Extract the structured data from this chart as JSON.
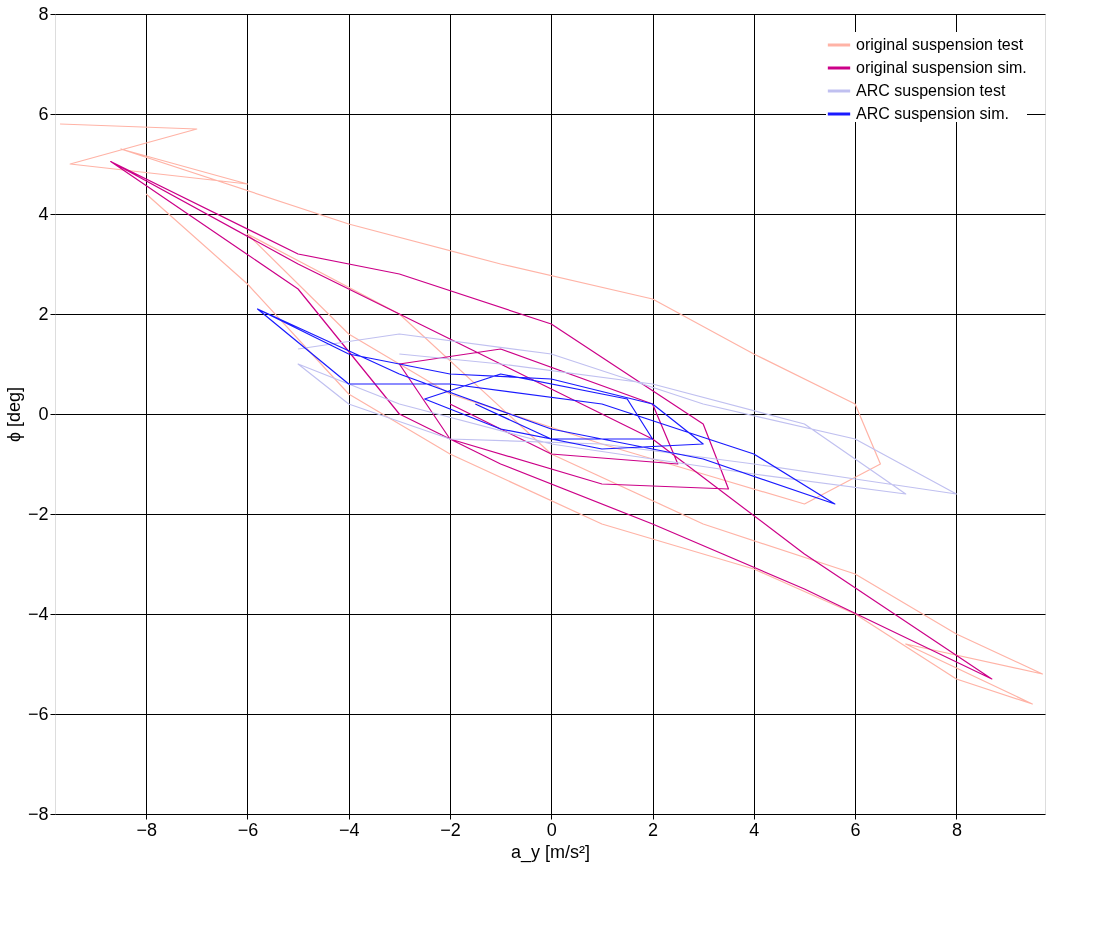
{
  "chart_data": {
    "type": "line",
    "xlabel": "a_y [m/s²]",
    "ylabel": "ϕ [deg]",
    "xlim": [
      -9.8,
      9.75
    ],
    "ylim": [
      -8,
      8
    ],
    "xticks": [
      -8,
      -6,
      -4,
      -2,
      0,
      2,
      4,
      6,
      8
    ],
    "yticks": [
      -8,
      -6,
      -4,
      -2,
      0,
      2,
      4,
      6,
      8
    ],
    "grid": true,
    "legend": "top right",
    "line_style": "solid",
    "marker": "none",
    "series": [
      {
        "name": "original suspension test",
        "color": "#ffb3a6",
        "x": [
          -9.7,
          -7,
          -9.5,
          -6,
          -8.5,
          -4,
          -1,
          2,
          4,
          6,
          6.5,
          5,
          3,
          1,
          -2,
          -4,
          -6,
          -3,
          0,
          3,
          6,
          8,
          9.7,
          7,
          9.5,
          8,
          6,
          4,
          1,
          -2,
          -4,
          -6,
          -8
        ],
        "values": [
          5.8,
          5.7,
          5,
          4.6,
          5.3,
          3.8,
          3,
          2.3,
          1.2,
          0.2,
          -1,
          -1.8,
          -1.2,
          -0.6,
          0.4,
          1.6,
          3.6,
          2,
          -0.8,
          -2.2,
          -3.2,
          -4.4,
          -5.2,
          -4.6,
          -5.8,
          -5.3,
          -4,
          -3.1,
          -2.2,
          -0.8,
          0.4,
          2.6,
          4.4
        ]
      },
      {
        "name": "original suspension sim.",
        "color": "#cc0088",
        "x": [
          -8.7,
          -5,
          -2,
          2,
          5,
          8.7,
          5,
          2,
          -1,
          -3,
          -5,
          -8.7,
          -5,
          -3,
          0,
          3,
          3.5,
          1,
          -2,
          -3,
          -1,
          2,
          2.5,
          0,
          -2
        ],
        "values": [
          5.05,
          3,
          1.5,
          -0.5,
          -2.8,
          -5.3,
          -3.5,
          -2.2,
          -1,
          0,
          2.5,
          5.05,
          3.2,
          2.8,
          1.8,
          -0.2,
          -1.5,
          -1.4,
          -0.5,
          1,
          1.3,
          0.2,
          -1,
          -0.8,
          0.2
        ]
      },
      {
        "name": "ARC suspension test",
        "color": "#c0c0f0",
        "x": [
          -5,
          -3,
          0,
          3,
          6,
          8,
          6,
          4,
          1,
          -2,
          -4,
          -5,
          -3,
          0,
          4,
          7,
          5,
          2,
          -1,
          -3
        ],
        "values": [
          1.3,
          1.6,
          1.2,
          0.2,
          -0.5,
          -1.6,
          -1.3,
          -1,
          -0.6,
          -0.5,
          0.2,
          1,
          0.2,
          -0.6,
          -1.2,
          -1.6,
          -0.2,
          0.6,
          1,
          1.2
        ]
      },
      {
        "name": "ARC suspension sim.",
        "color": "#1a1aff",
        "x": [
          -5.8,
          -3,
          0,
          3,
          5.6,
          4,
          1,
          -2,
          -4,
          -5.8,
          -4,
          -2,
          0,
          2,
          3,
          1,
          -1,
          -2.5,
          -1,
          1.5,
          2,
          0,
          -1.5
        ],
        "values": [
          2.1,
          0.8,
          -0.3,
          -0.9,
          -1.8,
          -0.8,
          0.2,
          0.6,
          0.6,
          2.1,
          1.2,
          0.8,
          0.7,
          0.2,
          -0.6,
          -0.7,
          -0.3,
          0.3,
          0.8,
          0.3,
          -0.5,
          -0.5,
          0.2
        ]
      }
    ]
  }
}
